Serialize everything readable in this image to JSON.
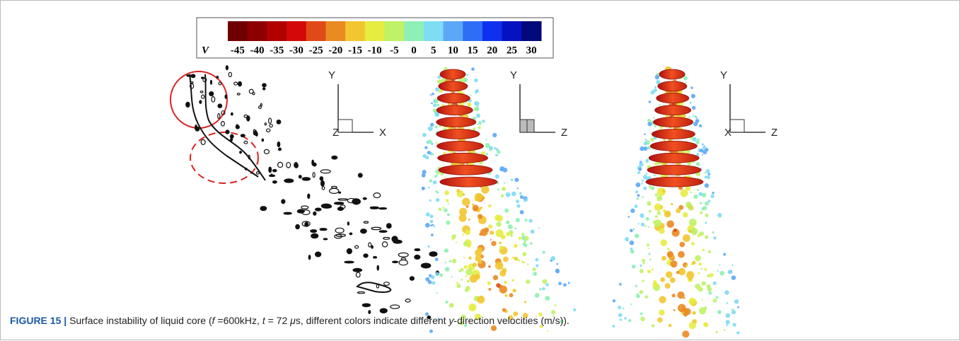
{
  "colorbar": {
    "label": "V",
    "ticks": [
      -45,
      -40,
      -35,
      -30,
      -25,
      -20,
      -15,
      -10,
      -5,
      0,
      5,
      10,
      15,
      20,
      25,
      30
    ],
    "colors": [
      "#6e0000",
      "#8e0000",
      "#b00000",
      "#d40808",
      "#e04a18",
      "#ea8a22",
      "#f2c630",
      "#e6ec40",
      "#bff266",
      "#8ef0b4",
      "#7edcf4",
      "#5ca8f6",
      "#2e6ef6",
      "#0f30ee",
      "#0612c0",
      "#00087a"
    ]
  },
  "panels": [
    {
      "axes": [
        "Y",
        "Z",
        "X"
      ]
    },
    {
      "axes": [
        "Y",
        "Z"
      ]
    },
    {
      "axes": [
        "Y",
        "X",
        "Z"
      ]
    }
  ],
  "caption": {
    "label": "FIGURE 15 |",
    "segments": [
      "Surface instability of liquid core (",
      "f",
      " =600kHz, ",
      "t",
      " = 72 ",
      "μ",
      "s, different colors indicate different ",
      "y",
      "-direction velocities (m/s))."
    ]
  }
}
